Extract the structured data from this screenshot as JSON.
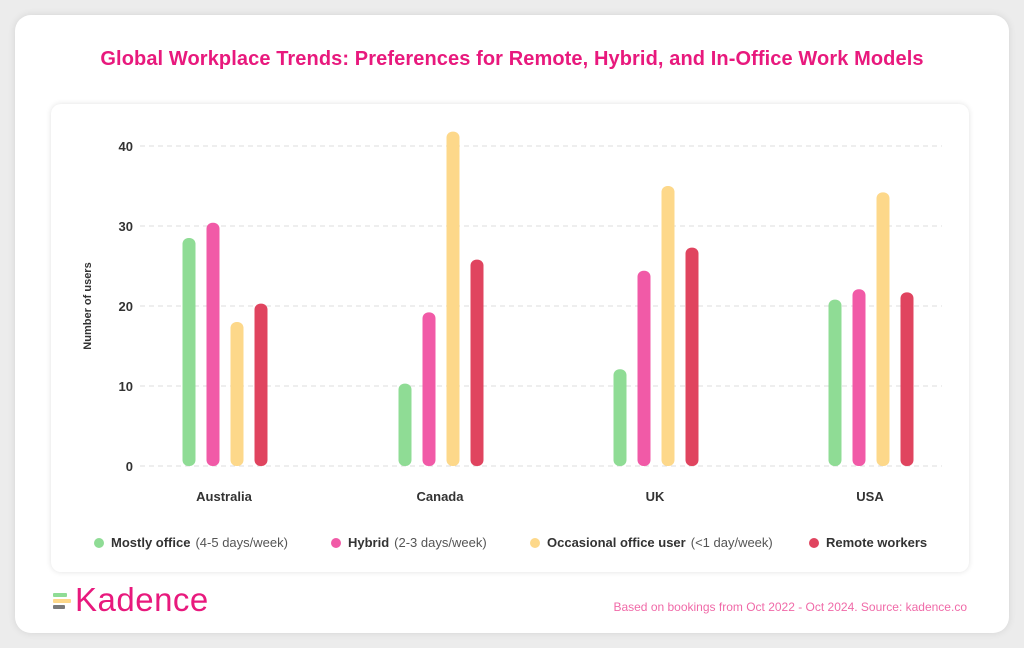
{
  "title": "Global Workplace Trends: Preferences for Remote, Hybrid, and In-Office Work Models",
  "colors": {
    "title": "#e8197d",
    "series": [
      "#8fdc95",
      "#f15aa7",
      "#fdd88a",
      "#e0445f"
    ]
  },
  "chart_data": {
    "type": "bar",
    "title": "Global Workplace Trends: Preferences for Remote, Hybrid, and In-Office Work Models",
    "xlabel": "",
    "ylabel": "Number of users",
    "ylim": [
      0,
      44
    ],
    "yticks": [
      0,
      10,
      20,
      30,
      40
    ],
    "grid": true,
    "categories": [
      "Australia",
      "Canada",
      "UK",
      "USA"
    ],
    "series": [
      {
        "name": "Mostly office",
        "detail": "(4-5 days/week)",
        "values": [
          28.5,
          10.3,
          12.1,
          20.8
        ]
      },
      {
        "name": "Hybrid",
        "detail": "(2-3 days/week)",
        "values": [
          30.4,
          19.2,
          24.4,
          22.1
        ]
      },
      {
        "name": "Occasional office user",
        "detail": "(<1 day/week)",
        "values": [
          18.0,
          41.8,
          35.0,
          34.2
        ]
      },
      {
        "name": "Remote workers",
        "detail": "",
        "values": [
          20.3,
          25.8,
          27.3,
          21.7
        ]
      }
    ]
  },
  "brand": {
    "name": "Kadence",
    "mark_colors": [
      "#8fdc95",
      "#fdd88a",
      "#7a7a7a"
    ]
  },
  "source": "Based on bookings from Oct 2022 - Oct 2024. Source: kadence.co"
}
